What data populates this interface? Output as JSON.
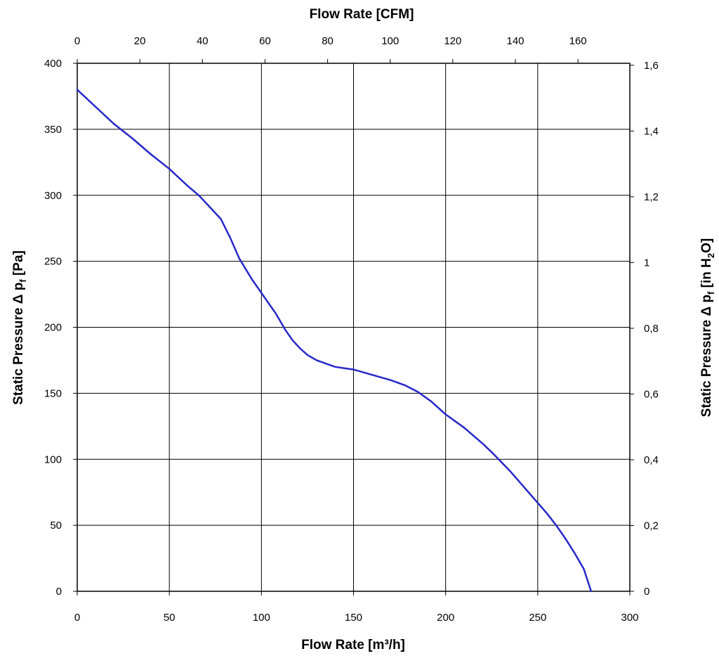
{
  "chart_data": {
    "type": "line",
    "title": "",
    "x_bottom": {
      "label": "Flow Rate [m³/h]",
      "range": [
        0,
        300
      ],
      "ticks": [
        "0",
        "50",
        "100",
        "150",
        "200",
        "250",
        "300"
      ]
    },
    "x_top": {
      "label": "Flow Rate [CFM]",
      "range": [
        0,
        176.57
      ],
      "ticks": [
        "0",
        "20",
        "40",
        "60",
        "80",
        "100",
        "120",
        "140",
        "160"
      ]
    },
    "y_left": {
      "label_main": "Static Pressure Δ p",
      "label_sub": "f",
      "label_unit": " [Pa]",
      "range": [
        0,
        400
      ],
      "ticks": [
        "0",
        "50",
        "100",
        "150",
        "200",
        "250",
        "300",
        "350",
        "400"
      ]
    },
    "y_right": {
      "label_main": "Static Pressure Δ p",
      "label_sub": "f",
      "label_unit_pre": " [in H",
      "label_unit_sub": "2",
      "label_unit_post": "O]",
      "range": [
        0,
        1.606
      ],
      "ticks": [
        "0",
        "0,2",
        "0,4",
        "0,6",
        "0,8",
        "1",
        "1,2",
        "1,4",
        "1,6"
      ]
    },
    "grid": true,
    "series": [
      {
        "color": "#2727c8",
        "x": [
          0,
          10,
          20,
          30,
          40,
          50,
          60,
          66,
          72,
          78,
          83,
          88,
          95,
          102,
          108,
          113,
          117,
          121,
          125,
          130,
          140,
          150,
          155,
          160,
          170,
          178,
          185,
          192,
          200,
          210,
          220,
          226,
          235,
          245,
          255,
          260,
          265,
          270,
          275,
          279
        ],
        "y": [
          380,
          367,
          354,
          343,
          331,
          320,
          307,
          300,
          291,
          282,
          268,
          252,
          236,
          222,
          210,
          198,
          190,
          184,
          179,
          175,
          170,
          168,
          166,
          164,
          160,
          156,
          151,
          144,
          134,
          124,
          112,
          104,
          91,
          75,
          59,
          50,
          40,
          29,
          17,
          0
        ]
      }
    ]
  }
}
